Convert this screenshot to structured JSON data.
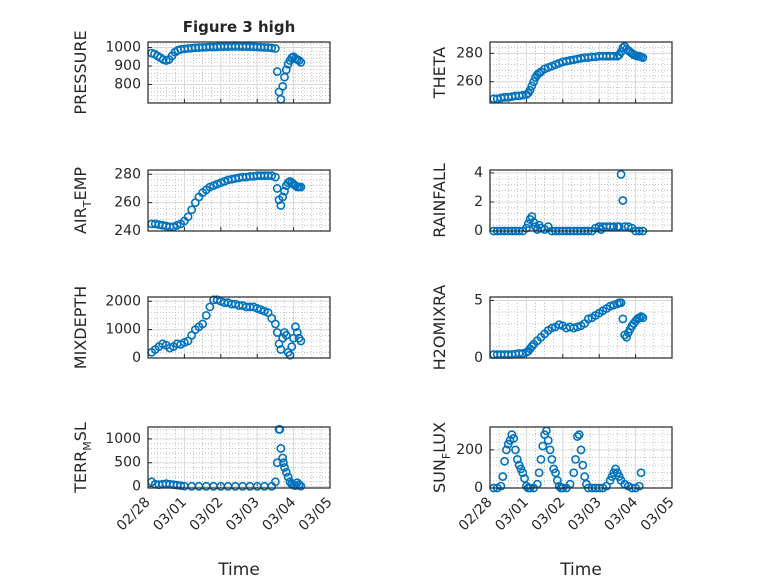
{
  "chart_data": [
    {
      "type": "scatter",
      "title": "Figure 3 high",
      "ylabel": "PRESSURE",
      "xlabel": "",
      "xticks": [
        "02/28",
        "03/01",
        "03/02",
        "03/03",
        "03/04",
        "03/05"
      ],
      "xlim": [
        0.0,
        5.0
      ],
      "ylim": [
        700,
        1030
      ],
      "yticks": [
        800,
        900,
        1000
      ],
      "grid": true,
      "series": [
        {
          "x": [
            0.1,
            0.18,
            0.26,
            0.34,
            0.42,
            0.5,
            0.58,
            0.66,
            0.74,
            0.82,
            0.9,
            1.0,
            1.1,
            1.2,
            1.3,
            1.4,
            1.5,
            1.6,
            1.7,
            1.8,
            1.9,
            2.0,
            2.1,
            2.2,
            2.3,
            2.4,
            2.5,
            2.6,
            2.7,
            2.8,
            2.9,
            3.0,
            3.1,
            3.2,
            3.3,
            3.4,
            3.5,
            3.55,
            3.6,
            3.65,
            3.7,
            3.75,
            3.8,
            3.85,
            3.9,
            3.95,
            4.0,
            4.05,
            4.1,
            4.15,
            4.2
          ],
          "y": [
            970,
            965,
            955,
            945,
            935,
            930,
            935,
            955,
            975,
            985,
            990,
            993,
            995,
            997,
            999,
            1000,
            1001,
            1002,
            1003,
            1003,
            1004,
            1005,
            1005,
            1005,
            1006,
            1006,
            1006,
            1005,
            1005,
            1005,
            1004,
            1003,
            1002,
            1001,
            1000,
            998,
            995,
            870,
            760,
            720,
            790,
            840,
            880,
            910,
            930,
            945,
            950,
            940,
            935,
            930,
            920
          ]
        }
      ]
    },
    {
      "type": "scatter",
      "ylabel": "THETA",
      "xlabel": "",
      "xticks": [
        "02/28",
        "03/01",
        "03/02",
        "03/03",
        "03/04",
        "03/05"
      ],
      "xlim": [
        0.0,
        5.0
      ],
      "ylim": [
        245,
        288
      ],
      "yticks": [
        260,
        280
      ],
      "grid": true,
      "series": [
        {
          "x": [
            0.1,
            0.2,
            0.3,
            0.4,
            0.5,
            0.6,
            0.7,
            0.8,
            0.9,
            1.0,
            1.05,
            1.1,
            1.15,
            1.2,
            1.25,
            1.3,
            1.35,
            1.4,
            1.5,
            1.6,
            1.7,
            1.8,
            1.9,
            2.0,
            2.1,
            2.2,
            2.3,
            2.4,
            2.5,
            2.6,
            2.7,
            2.8,
            2.9,
            3.0,
            3.1,
            3.2,
            3.3,
            3.4,
            3.5,
            3.55,
            3.6,
            3.65,
            3.7,
            3.75,
            3.8,
            3.85,
            3.9,
            3.95,
            4.0,
            4.05,
            4.1,
            4.15,
            4.2
          ],
          "y": [
            248,
            248,
            248.5,
            249,
            249,
            249.5,
            250,
            250,
            250.5,
            251,
            252,
            254,
            257,
            260,
            263,
            265,
            266,
            267,
            269,
            270,
            271,
            272,
            273,
            274,
            274.5,
            275,
            275.5,
            276,
            276.5,
            277,
            277,
            277.5,
            277.5,
            278,
            278,
            278,
            278,
            278,
            278,
            279,
            281,
            284,
            285,
            283,
            282,
            281,
            280,
            279,
            278.5,
            278,
            278,
            277.5,
            277
          ]
        }
      ]
    },
    {
      "type": "scatter",
      "ylabel": "AIR_TEMP",
      "xlabel": "",
      "xticks": [
        "02/28",
        "03/01",
        "03/02",
        "03/03",
        "03/04",
        "03/05"
      ],
      "xlim": [
        0.0,
        5.0
      ],
      "ylim": [
        240,
        283
      ],
      "yticks": [
        240,
        260,
        280
      ],
      "grid": true,
      "series": [
        {
          "x": [
            0.1,
            0.2,
            0.3,
            0.4,
            0.5,
            0.6,
            0.7,
            0.8,
            0.9,
            1.0,
            1.1,
            1.2,
            1.3,
            1.4,
            1.5,
            1.6,
            1.7,
            1.8,
            1.9,
            2.0,
            2.1,
            2.2,
            2.3,
            2.4,
            2.5,
            2.6,
            2.7,
            2.8,
            2.9,
            3.0,
            3.1,
            3.2,
            3.3,
            3.4,
            3.5,
            3.55,
            3.6,
            3.65,
            3.7,
            3.75,
            3.8,
            3.85,
            3.9,
            3.95,
            4.0,
            4.05,
            4.1,
            4.15,
            4.2
          ],
          "y": [
            245,
            245,
            244.5,
            244,
            243.5,
            243,
            243,
            244,
            245,
            247,
            250,
            255,
            260,
            264,
            267,
            269,
            271,
            272,
            273,
            274,
            275,
            276,
            276.5,
            277,
            277.5,
            278,
            278,
            278.5,
            278.5,
            279,
            279,
            279,
            279,
            279,
            278,
            270,
            262,
            258,
            264,
            268,
            272,
            274,
            275,
            274,
            273,
            272,
            271,
            271,
            271
          ]
        }
      ]
    },
    {
      "type": "scatter",
      "ylabel": "RAINFALL",
      "xlabel": "",
      "xticks": [
        "02/28",
        "03/01",
        "03/02",
        "03/03",
        "03/04",
        "03/05"
      ],
      "xlim": [
        0.0,
        5.0
      ],
      "ylim": [
        0,
        4.2
      ],
      "yticks": [
        0,
        2,
        4
      ],
      "grid": true,
      "series": [
        {
          "x": [
            0.1,
            0.2,
            0.3,
            0.4,
            0.5,
            0.6,
            0.7,
            0.8,
            0.9,
            1.0,
            1.05,
            1.1,
            1.15,
            1.2,
            1.25,
            1.3,
            1.35,
            1.4,
            1.5,
            1.6,
            1.7,
            1.8,
            1.9,
            2.0,
            2.1,
            2.2,
            2.3,
            2.4,
            2.5,
            2.6,
            2.7,
            2.8,
            2.9,
            3.0,
            3.05,
            3.1,
            3.2,
            3.3,
            3.4,
            3.5,
            3.55,
            3.6,
            3.65,
            3.7,
            3.8,
            3.9,
            4.0,
            4.1,
            4.2
          ],
          "y": [
            0,
            0,
            0,
            0,
            0,
            0,
            0,
            0,
            0,
            0.2,
            0.5,
            0.8,
            1.0,
            0.6,
            0.3,
            0.1,
            0.4,
            0.2,
            0.1,
            0.3,
            0,
            0,
            0,
            0,
            0,
            0,
            0,
            0,
            0,
            0,
            0,
            0,
            0.2,
            0.3,
            0.1,
            0.3,
            0.3,
            0.3,
            0.3,
            0.3,
            0.3,
            3.9,
            2.1,
            0.3,
            0.3,
            0.2,
            0,
            0,
            0
          ]
        }
      ]
    },
    {
      "type": "scatter",
      "ylabel": "MIXDEPTH",
      "xlabel": "",
      "xticks": [
        "02/28",
        "03/01",
        "03/02",
        "03/03",
        "03/04",
        "03/05"
      ],
      "xlim": [
        0.0,
        5.0
      ],
      "ylim": [
        0,
        2150
      ],
      "yticks": [
        0,
        1000,
        2000
      ],
      "grid": true,
      "series": [
        {
          "x": [
            0.1,
            0.2,
            0.3,
            0.4,
            0.5,
            0.6,
            0.7,
            0.8,
            0.9,
            1.0,
            1.1,
            1.2,
            1.3,
            1.4,
            1.5,
            1.6,
            1.7,
            1.8,
            1.9,
            2.0,
            2.1,
            2.2,
            2.3,
            2.4,
            2.5,
            2.6,
            2.7,
            2.8,
            2.9,
            3.0,
            3.1,
            3.2,
            3.3,
            3.4,
            3.5,
            3.55,
            3.6,
            3.65,
            3.7,
            3.75,
            3.8,
            3.85,
            3.9,
            3.95,
            4.0,
            4.05,
            4.1,
            4.15,
            4.2
          ],
          "y": [
            200,
            300,
            400,
            500,
            450,
            350,
            400,
            500,
            480,
            550,
            600,
            800,
            1000,
            1100,
            1200,
            1500,
            1800,
            2050,
            2050,
            2000,
            1950,
            1950,
            1900,
            1900,
            1850,
            1850,
            1800,
            1800,
            1800,
            1750,
            1700,
            1650,
            1600,
            1400,
            1200,
            900,
            500,
            300,
            700,
            900,
            800,
            200,
            100,
            400,
            700,
            1100,
            900,
            700,
            600
          ]
        }
      ]
    },
    {
      "type": "scatter",
      "ylabel": "H2OMIXRA",
      "xlabel": "",
      "xticks": [
        "02/28",
        "03/01",
        "03/02",
        "03/03",
        "03/04",
        "03/05"
      ],
      "xlim": [
        0.0,
        5.0
      ],
      "ylim": [
        0,
        5.3
      ],
      "yticks": [
        0,
        5
      ],
      "grid": true,
      "series": [
        {
          "x": [
            0.1,
            0.2,
            0.3,
            0.4,
            0.5,
            0.6,
            0.7,
            0.8,
            0.9,
            1.0,
            1.05,
            1.1,
            1.15,
            1.2,
            1.3,
            1.4,
            1.5,
            1.6,
            1.7,
            1.8,
            1.9,
            2.0,
            2.1,
            2.2,
            2.3,
            2.4,
            2.5,
            2.6,
            2.7,
            2.8,
            2.9,
            3.0,
            3.1,
            3.2,
            3.3,
            3.4,
            3.5,
            3.55,
            3.6,
            3.65,
            3.7,
            3.75,
            3.8,
            3.85,
            3.9,
            3.95,
            4.0,
            4.05,
            4.1,
            4.15,
            4.2
          ],
          "y": [
            0.3,
            0.3,
            0.3,
            0.3,
            0.3,
            0.3,
            0.35,
            0.4,
            0.4,
            0.5,
            0.6,
            0.8,
            1.0,
            1.2,
            1.5,
            1.8,
            2.1,
            2.4,
            2.6,
            2.7,
            2.9,
            2.8,
            2.6,
            2.7,
            2.6,
            2.7,
            2.8,
            3.0,
            3.4,
            3.5,
            3.7,
            3.9,
            4.1,
            4.3,
            4.5,
            4.6,
            4.7,
            4.8,
            4.8,
            3.4,
            2.0,
            1.8,
            2.2,
            2.5,
            2.8,
            3.0,
            3.2,
            3.4,
            3.5,
            3.6,
            3.5
          ]
        }
      ]
    },
    {
      "type": "scatter",
      "ylabel": "TERR_MSL",
      "xlabel": "Time",
      "xticks": [
        "02/28",
        "03/01",
        "03/02",
        "03/03",
        "03/04",
        "03/05"
      ],
      "xlim": [
        0.0,
        5.0
      ],
      "ylim": [
        -30,
        1250
      ],
      "yticks": [
        0,
        500,
        1000
      ],
      "grid": true,
      "series": [
        {
          "x": [
            0.1,
            0.2,
            0.3,
            0.4,
            0.5,
            0.6,
            0.7,
            0.8,
            0.9,
            1.0,
            1.2,
            1.4,
            1.6,
            1.8,
            2.0,
            2.2,
            2.4,
            2.6,
            2.8,
            3.0,
            3.2,
            3.4,
            3.5,
            3.55,
            3.6,
            3.62,
            3.65,
            3.7,
            3.72,
            3.75,
            3.8,
            3.85,
            3.9,
            3.95,
            4.0,
            4.05,
            4.1,
            4.15,
            4.2
          ],
          "y": [
            100,
            50,
            40,
            50,
            60,
            50,
            40,
            30,
            20,
            10,
            5,
            5,
            5,
            5,
            5,
            5,
            5,
            5,
            5,
            5,
            5,
            5,
            100,
            500,
            1200,
            1200,
            800,
            600,
            500,
            400,
            300,
            200,
            100,
            50,
            30,
            20,
            80,
            40,
            10
          ]
        }
      ]
    },
    {
      "type": "scatter",
      "ylabel": "SUN_FLUX",
      "xlabel": "Time",
      "xticks": [
        "02/28",
        "03/01",
        "03/02",
        "03/03",
        "03/04",
        "03/05"
      ],
      "xlim": [
        0.0,
        5.0
      ],
      "ylim": [
        0,
        320
      ],
      "yticks": [
        0,
        200
      ],
      "grid": true,
      "series": [
        {
          "x": [
            0.1,
            0.2,
            0.3,
            0.35,
            0.4,
            0.45,
            0.5,
            0.55,
            0.6,
            0.65,
            0.7,
            0.75,
            0.8,
            0.85,
            0.9,
            0.95,
            1.0,
            1.05,
            1.1,
            1.2,
            1.3,
            1.35,
            1.4,
            1.45,
            1.5,
            1.55,
            1.6,
            1.65,
            1.7,
            1.75,
            1.8,
            1.85,
            1.9,
            1.95,
            2.0,
            2.1,
            2.2,
            2.3,
            2.35,
            2.4,
            2.45,
            2.5,
            2.55,
            2.6,
            2.65,
            2.7,
            2.8,
            2.9,
            3.0,
            3.1,
            3.2,
            3.3,
            3.35,
            3.4,
            3.45,
            3.5,
            3.55,
            3.6,
            3.7,
            3.8,
            3.9,
            4.0,
            4.1,
            4.15
          ],
          "y": [
            0,
            0,
            10,
            60,
            140,
            200,
            230,
            250,
            280,
            260,
            200,
            150,
            120,
            100,
            80,
            50,
            10,
            0,
            0,
            0,
            20,
            80,
            150,
            220,
            280,
            300,
            250,
            200,
            150,
            100,
            80,
            40,
            10,
            0,
            0,
            0,
            20,
            80,
            150,
            270,
            280,
            200,
            120,
            60,
            20,
            0,
            0,
            0,
            0,
            0,
            10,
            40,
            60,
            80,
            100,
            80,
            60,
            40,
            20,
            10,
            0,
            0,
            10,
            80
          ]
        }
      ]
    }
  ]
}
